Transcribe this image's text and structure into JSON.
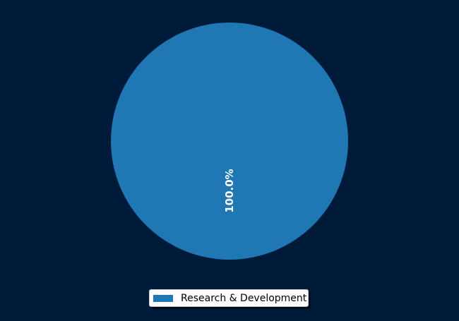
{
  "chart_data": {
    "type": "pie",
    "labels": [
      "Research & Development"
    ],
    "values": [
      100.0
    ],
    "percent_labels": [
      "100.0%"
    ],
    "colors": [
      "#1f77b4"
    ],
    "legend": {
      "position": "bottom-center",
      "entries": [
        "Research & Development"
      ]
    }
  },
  "colors": {
    "background": "#001a3a",
    "label_text": "#ffffff"
  }
}
